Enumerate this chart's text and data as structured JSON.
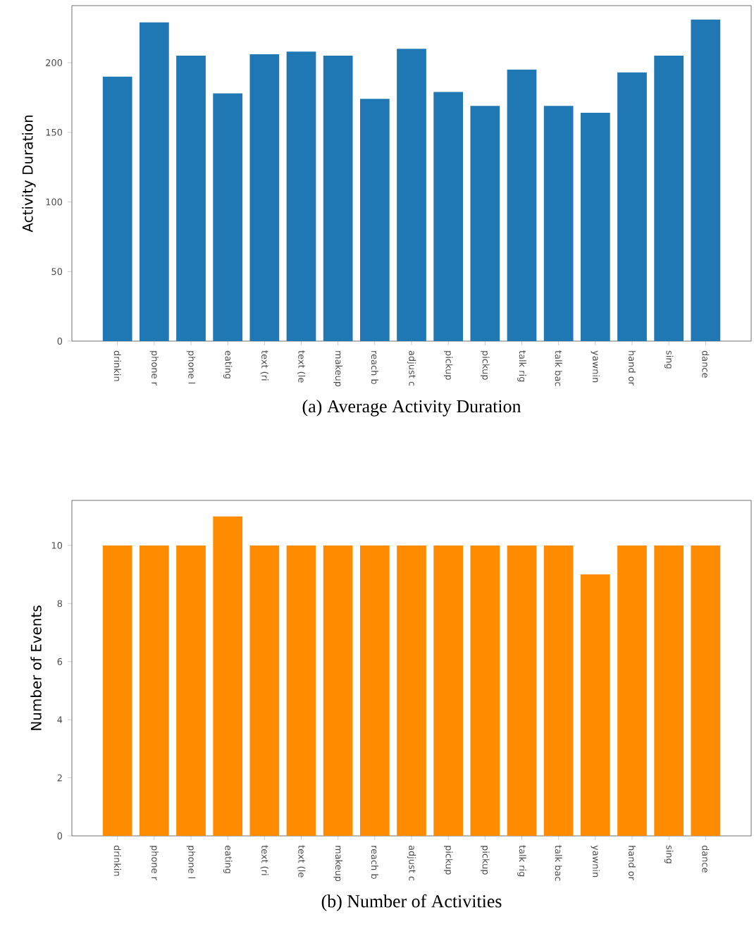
{
  "chart_data": [
    {
      "type": "bar",
      "title": "(a) Average Activity Duration",
      "ylabel": "Activity Duration",
      "categories": [
        "drinkin",
        "phone r",
        "phone l",
        "eating",
        "text (ri",
        "text (le",
        "makeup",
        "reach b",
        "adjust c",
        "pickup",
        "pickup",
        "talk rig",
        "talk bac",
        "yawnin",
        "hand or",
        "sing",
        "dance"
      ],
      "values": [
        190,
        229,
        205,
        178,
        206,
        208,
        205,
        174,
        210,
        179,
        169,
        195,
        169,
        164,
        193,
        205,
        231
      ],
      "color": "#1f77b4",
      "ylim": [
        0,
        241
      ],
      "yticks": [
        0,
        50,
        100,
        150,
        200
      ]
    },
    {
      "type": "bar",
      "title": "(b) Number of Activities",
      "ylabel": "Number of Events",
      "categories": [
        "drinkin",
        "phone r",
        "phone l",
        "eating",
        "text (ri",
        "text (le",
        "makeup",
        "reach b",
        "adjust c",
        "pickup",
        "pickup",
        "talk rig",
        "talk bac",
        "yawnin",
        "hand or",
        "sing",
        "dance"
      ],
      "values": [
        10,
        10,
        10,
        11,
        10,
        10,
        10,
        10,
        10,
        10,
        10,
        10,
        10,
        9,
        10,
        10,
        10
      ],
      "color": "#ff8c00",
      "ylim": [
        0,
        11.55
      ],
      "yticks": [
        0,
        2,
        4,
        6,
        8,
        10
      ]
    }
  ]
}
